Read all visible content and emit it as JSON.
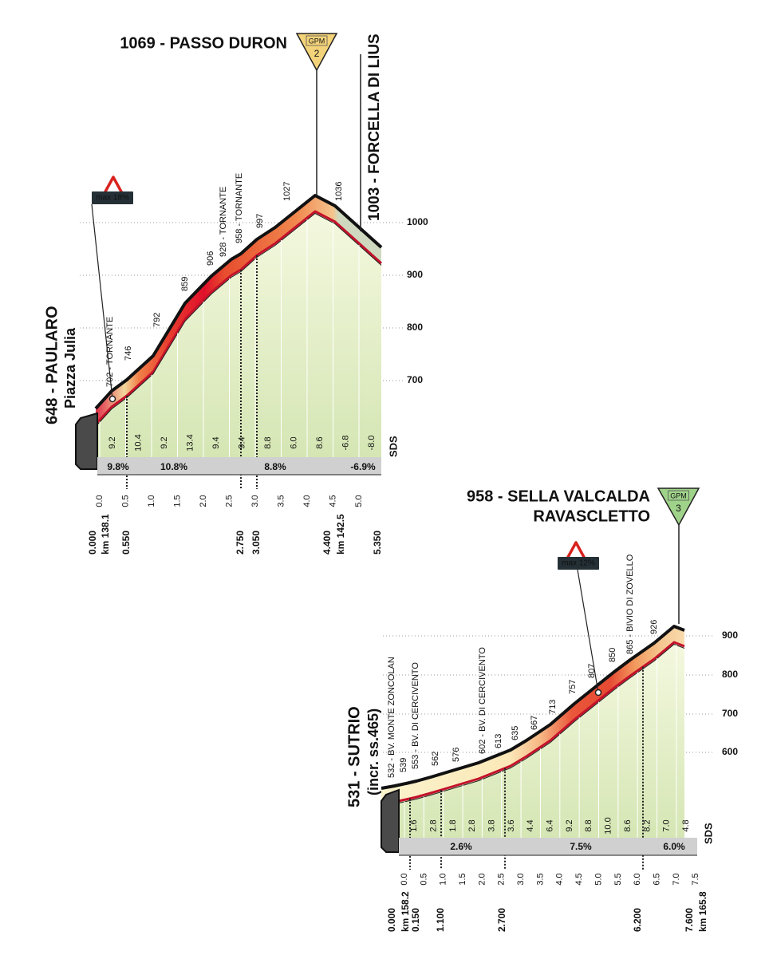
{
  "profiles": [
    {
      "summit": {
        "lines": [
          "1069 - PASSO DURON"
        ],
        "gpm": "GPM",
        "gpm_number": "2"
      },
      "start": {
        "label": "648 - PAULARO",
        "sub": "Piazza Julia"
      },
      "pass": "1003 - FORCELLA DI LIUS",
      "max_gradient": "max 18%",
      "waypoints": [
        "702 - TORNANTE",
        "746",
        "792",
        "859",
        "906",
        "928 - TORNANTE",
        "958 - TORNANTE",
        "997",
        "1027",
        "1036"
      ],
      "altitude_ticks": [
        "700",
        "800",
        "900",
        "1000"
      ],
      "gradients": [
        "9.2",
        "10.4",
        "9.2",
        "13.4",
        "9.4",
        "9.4",
        "8.8",
        "6.0",
        "8.6",
        "-6.8",
        "-8.0"
      ],
      "averages": [
        "9.8%",
        "10.8%",
        "8.8%",
        "-6.9%"
      ],
      "km_ticks": [
        "0.0",
        "0.5",
        "1.0",
        "1.5",
        "2.0",
        "2.5",
        "3.0",
        "3.5",
        "4.0",
        "4.5",
        "5.0"
      ],
      "distances": [
        "0.000",
        "0.550",
        "2.750",
        "3.050",
        "4.400",
        "5.350"
      ],
      "km_marks": [
        "km 138.1",
        "km 142.5"
      ],
      "logo": "SDS"
    },
    {
      "summit": {
        "lines": [
          "958 - SELLA VALCALDA",
          "RAVASCLETTO"
        ],
        "gpm": "GPM",
        "gpm_number": "3"
      },
      "start": {
        "label": "531 - SUTRIO",
        "sub": "(incr. ss.465)"
      },
      "max_gradient": "max 12%",
      "waypoints": [
        "532 - BV. MONTE ZONCOLAN",
        "539",
        "553 - BV. DI CERCIVENTO",
        "562",
        "576",
        "602 - BV. DI CERCIVENTO",
        "613",
        "635",
        "667",
        "713",
        "757",
        "807",
        "850",
        "865 - BIVIO DI ZOVELLO",
        "926"
      ],
      "altitude_ticks": [
        "600",
        "700",
        "800",
        "900"
      ],
      "gradients": [
        "1.6",
        "2.8",
        "1.8",
        "2.8",
        "3.8",
        "3.6",
        "4.4",
        "6.4",
        "9.2",
        "8.8",
        "10.0",
        "8.6",
        "8.2",
        "7.0",
        "4.8"
      ],
      "averages": [
        "2.6%",
        "7.5%",
        "6.0%"
      ],
      "km_ticks": [
        "0.0",
        "0.5",
        "1.0",
        "1.5",
        "2.0",
        "2.5",
        "3.0",
        "3.5",
        "4.0",
        "4.5",
        "5.0",
        "5.5",
        "6.0",
        "6.5",
        "7.0",
        "7.5"
      ],
      "distances": [
        "0.000",
        "0.150",
        "1.100",
        "2.700",
        "6.200",
        "7.600"
      ],
      "km_marks": [
        "km 158.2",
        "km 165.8"
      ],
      "logo": "SDS"
    }
  ]
}
